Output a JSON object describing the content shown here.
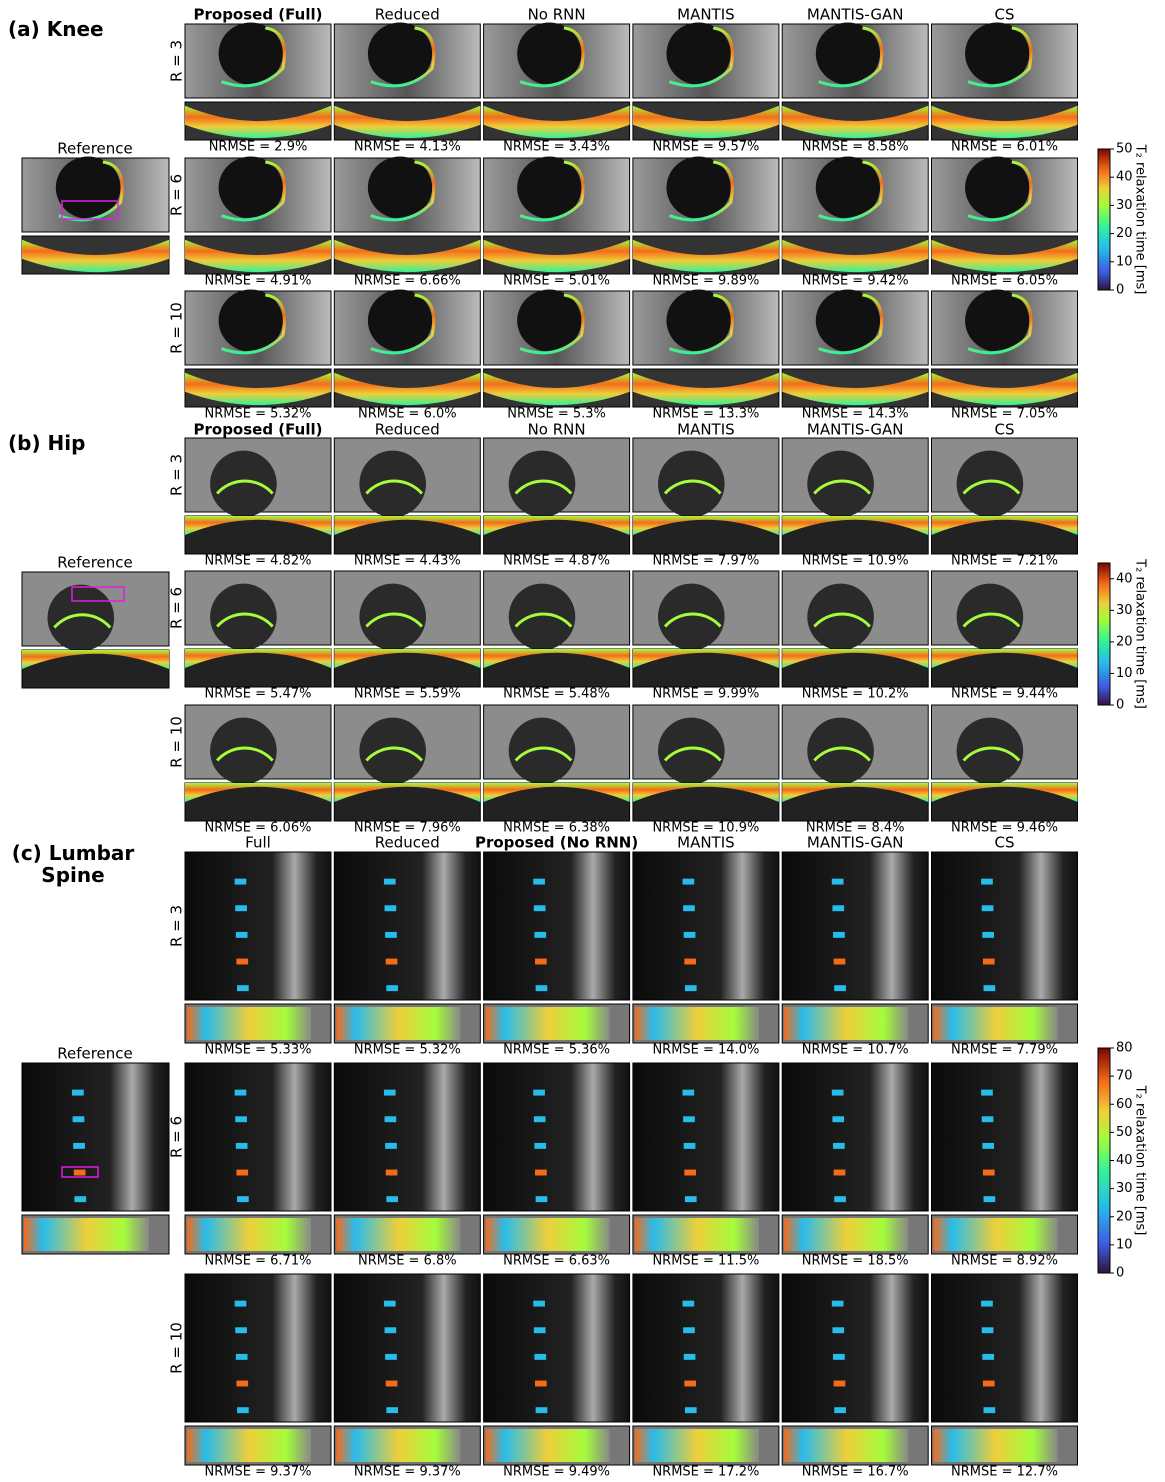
{
  "panels": [
    {
      "title": "(a) Knee",
      "columns": [
        "Proposed (Full)",
        "Reduced",
        "No RNN",
        "MANTIS",
        "MANTIS-GAN",
        "CS"
      ],
      "highlight_column": 0,
      "reference_label": "Reference",
      "rows": [
        {
          "label": "R = 3",
          "nrmse": [
            "NRMSE = 2.9%",
            "NRMSE = 4.13%",
            "NRMSE = 3.43%",
            "NRMSE = 9.57%",
            "NRMSE = 8.58%",
            "NRMSE = 6.01%"
          ]
        },
        {
          "label": "R = 6",
          "nrmse": [
            "NRMSE = 4.91%",
            "NRMSE = 6.66%",
            "NRMSE = 5.01%",
            "NRMSE = 9.89%",
            "NRMSE = 9.42%",
            "NRMSE = 6.05%"
          ]
        },
        {
          "label": "R = 10",
          "nrmse": [
            "NRMSE = 5.32%",
            "NRMSE = 6.0%",
            "NRMSE = 5.3%",
            "NRMSE = 13.3%",
            "NRMSE = 14.3%",
            "NRMSE = 7.05%"
          ]
        }
      ],
      "colorbar": {
        "label": "T₂ relaxation time [ms]",
        "lim": [
          0,
          50
        ],
        "ticks": [
          0,
          10,
          20,
          30,
          40,
          50
        ]
      }
    },
    {
      "title": "(b) Hip",
      "columns": [
        "Proposed (Full)",
        "Reduced",
        "No RNN",
        "MANTIS",
        "MANTIS-GAN",
        "CS"
      ],
      "highlight_column": 0,
      "reference_label": "Reference",
      "rows": [
        {
          "label": "R = 3",
          "nrmse": [
            "NRMSE = 4.82%",
            "NRMSE = 4.43%",
            "NRMSE = 4.87%",
            "NRMSE = 7.97%",
            "NRMSE = 10.9%",
            "NRMSE = 7.21%"
          ]
        },
        {
          "label": "R = 6",
          "nrmse": [
            "NRMSE = 5.47%",
            "NRMSE = 5.59%",
            "NRMSE = 5.48%",
            "NRMSE = 9.99%",
            "NRMSE = 10.2%",
            "NRMSE = 9.44%"
          ]
        },
        {
          "label": "R = 10",
          "nrmse": [
            "NRMSE = 6.06%",
            "NRMSE = 7.96%",
            "NRMSE = 6.38%",
            "NRMSE = 10.9%",
            "NRMSE = 8.4%",
            "NRMSE = 9.46%"
          ]
        }
      ],
      "colorbar": {
        "label": "T₂ relaxation time [ms]",
        "lim": [
          0,
          45
        ],
        "ticks": [
          0,
          10,
          20,
          30,
          40
        ]
      }
    },
    {
      "title": "(c) Lumbar Spine",
      "columns": [
        "Full",
        "Reduced",
        "Proposed (No RNN)",
        "MANTIS",
        "MANTIS-GAN",
        "CS"
      ],
      "highlight_column": 2,
      "reference_label": "Reference",
      "rows": [
        {
          "label": "R = 3",
          "nrmse": [
            "NRMSE = 5.33%",
            "NRMSE = 5.32%",
            "NRMSE = 5.36%",
            "NRMSE = 14.0%",
            "NRMSE = 10.7%",
            "NRMSE = 7.79%"
          ]
        },
        {
          "label": "R = 6",
          "nrmse": [
            "NRMSE = 6.71%",
            "NRMSE = 6.8%",
            "NRMSE = 6.63%",
            "NRMSE = 11.5%",
            "NRMSE = 18.5%",
            "NRMSE = 8.92%"
          ]
        },
        {
          "label": "R = 10",
          "nrmse": [
            "NRMSE = 9.37%",
            "NRMSE = 9.37%",
            "NRMSE = 9.49%",
            "NRMSE = 17.2%",
            "NRMSE = 16.7%",
            "NRMSE = 12.7%"
          ]
        }
      ],
      "colorbar": {
        "label": "T₂ relaxation time [ms]",
        "lim": [
          0,
          80
        ],
        "ticks": [
          0,
          10,
          20,
          30,
          40,
          50,
          60,
          70,
          80
        ]
      }
    }
  ]
}
